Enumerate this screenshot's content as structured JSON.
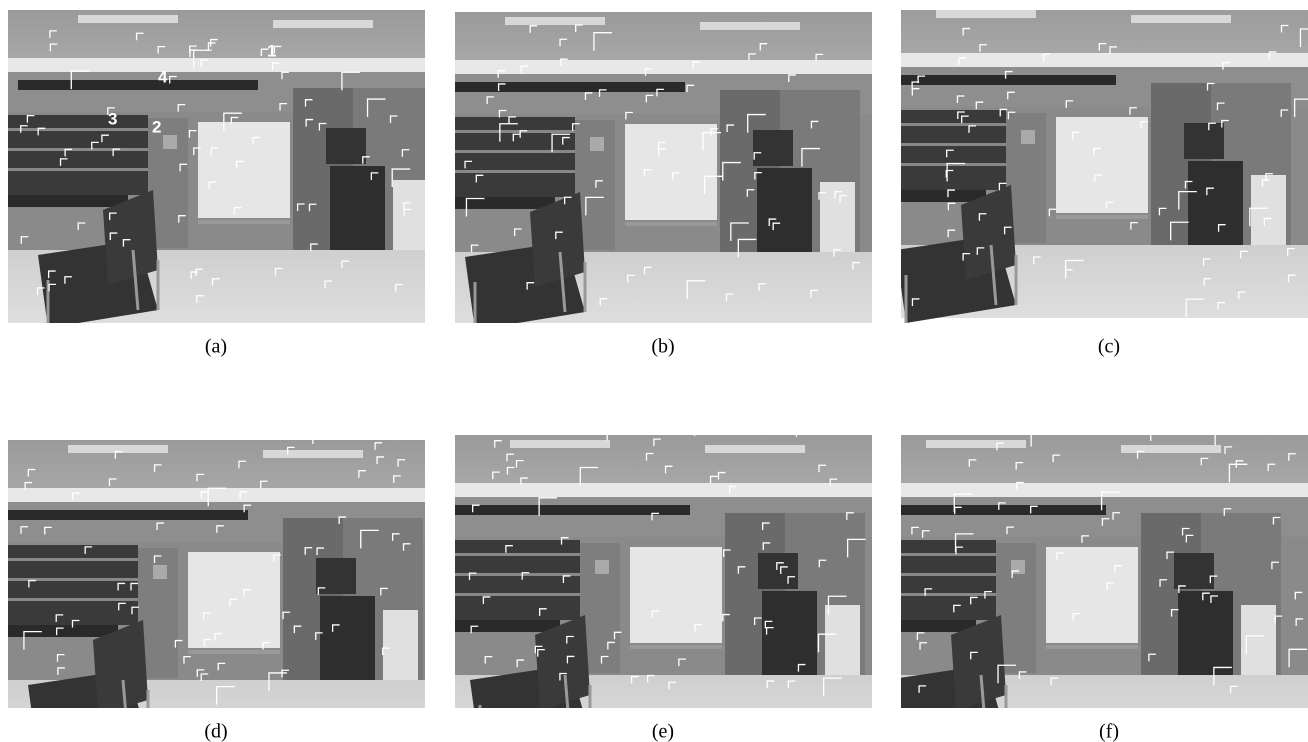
{
  "panels": [
    {
      "caption": "(a)",
      "labels": [
        "1",
        "2",
        "3",
        "4"
      ]
    },
    {
      "caption": "(b)"
    },
    {
      "caption": "(c)"
    },
    {
      "caption": "(d)"
    },
    {
      "caption": "(e)"
    },
    {
      "caption": "(f)"
    }
  ]
}
